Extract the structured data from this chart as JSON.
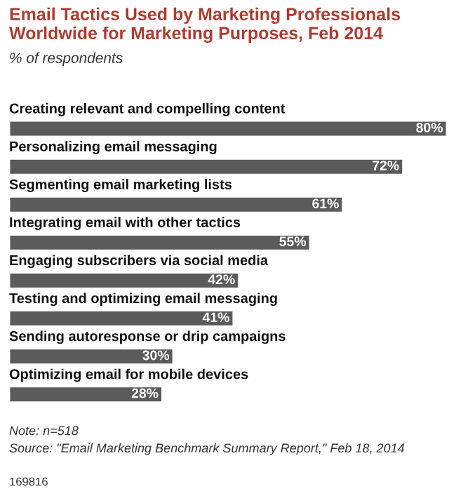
{
  "chart_data": {
    "type": "bar",
    "orientation": "horizontal",
    "title": "Email Tactics Used by Marketing Professionals Worldwide for Marketing Purposes, Feb 2014",
    "subtitle": "% of respondents",
    "categories": [
      "Creating relevant and compelling content",
      "Personalizing email messaging",
      "Segmenting email marketing lists",
      "Integrating email with other tactics",
      "Engaging subscribers via social media",
      "Testing and optimizing email messaging",
      "Sending autoresponse or drip campaigns",
      "Optimizing email for mobile devices"
    ],
    "values": [
      80,
      72,
      61,
      55,
      42,
      41,
      30,
      28
    ],
    "value_labels": [
      "80%",
      "72%",
      "61%",
      "55%",
      "42%",
      "41%",
      "30%",
      "28%"
    ],
    "color": "#5b5b5b",
    "annotations": [
      "Note: n=518",
      "Source: \"Email Marketing Benchmark Summary Report,\" Feb 18, 2014",
      "169816"
    ]
  }
}
